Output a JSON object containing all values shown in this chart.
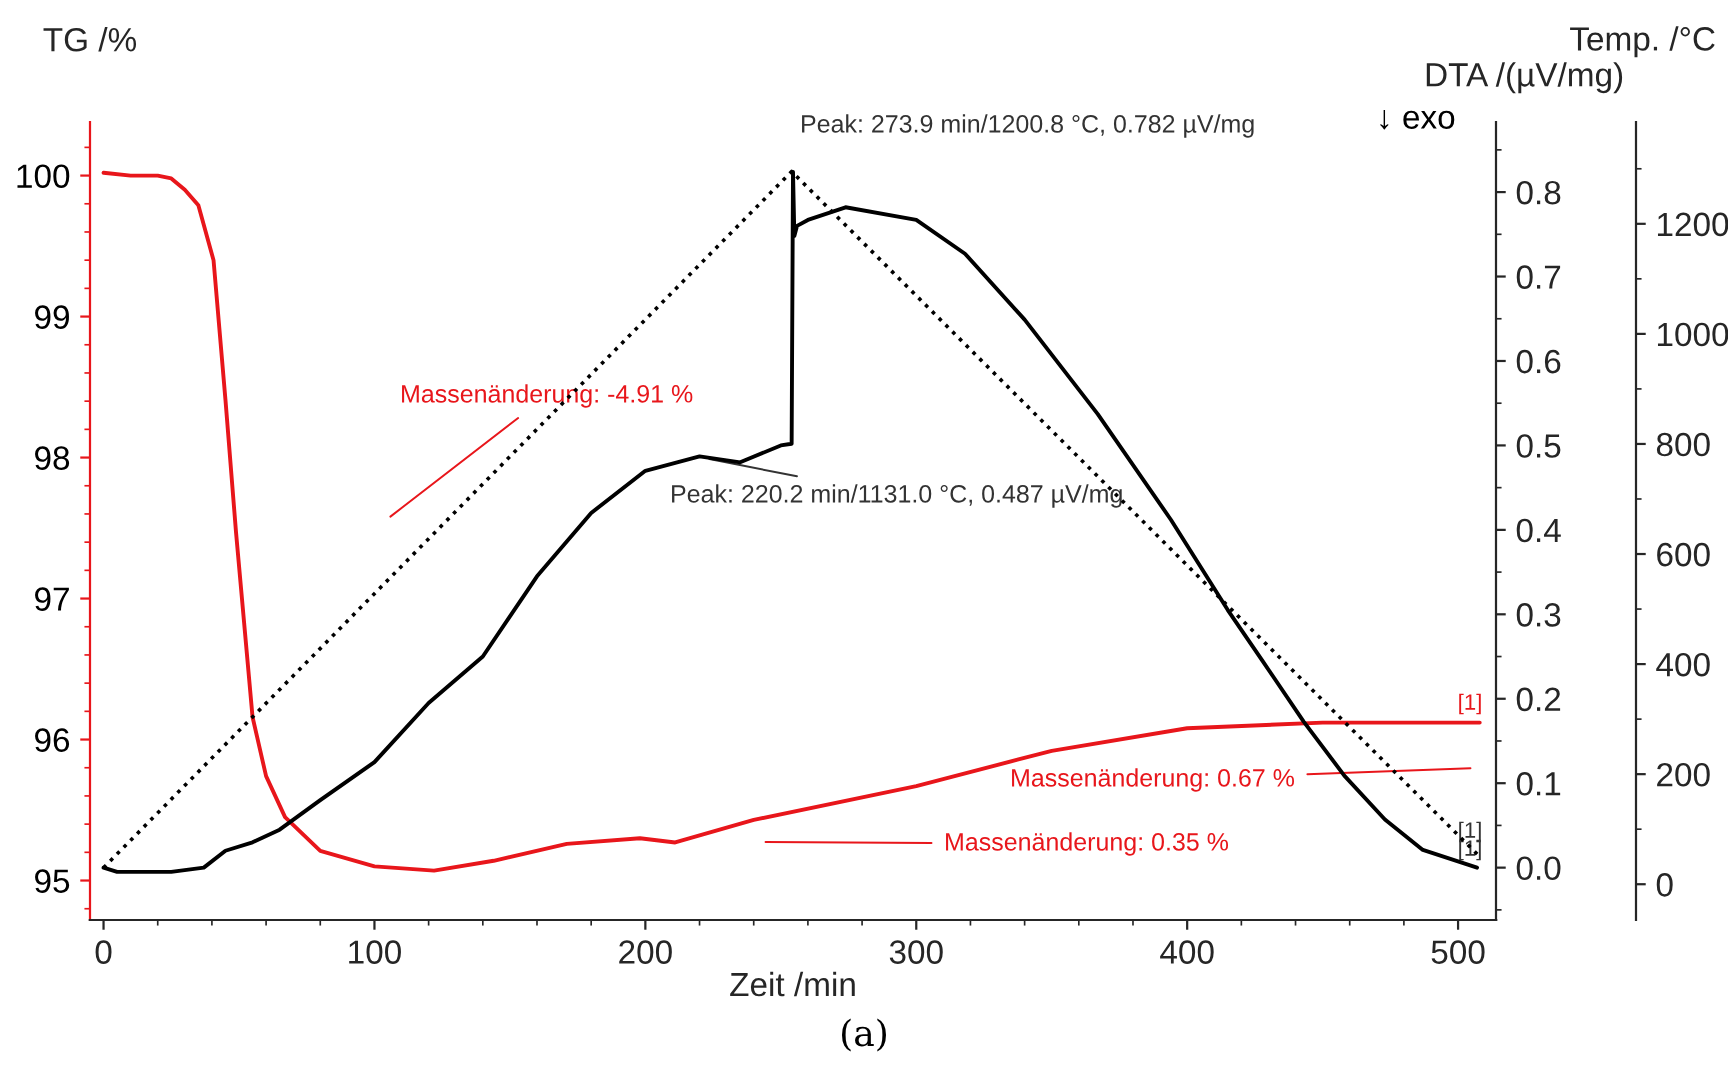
{
  "chart_data": {
    "type": "line",
    "xlabel": "Zeit /min",
    "ylabel": "TG /%",
    "y2label": "DTA /(µV/mg)",
    "y3label": "Temp. /°C",
    "xlim": [
      -5,
      514
    ],
    "xticks": [
      0,
      100,
      200,
      300,
      400,
      500
    ],
    "ylim": [
      94.72,
      100.38
    ],
    "yticks": [
      95,
      96,
      97,
      98,
      99,
      100
    ],
    "y2lim": [
      -0.062,
      0.883
    ],
    "y2ticks": [
      {
        "value": 0,
        "label": "0.0"
      },
      0.1,
      0.2,
      0.3,
      0.4,
      0.5,
      0.6,
      0.7,
      0.8
    ],
    "y3lim": [
      -65,
      1385
    ],
    "y3ticks": [
      0,
      200,
      400,
      600,
      800,
      1000,
      1200
    ],
    "grid": false,
    "legend": false,
    "series": [
      {
        "color": "#e8161b",
        "x": [
          0,
          10,
          20,
          25,
          30,
          35,
          40.6,
          45,
          48.9,
          55,
          60,
          67,
          80,
          100,
          122,
          144,
          171,
          198,
          211,
          240,
          300,
          350,
          400,
          450,
          508
        ],
        "values": [
          100.02,
          100.0,
          100.0,
          99.98,
          99.9,
          99.79,
          99.4,
          98.41,
          97.47,
          96.16,
          95.74,
          95.45,
          95.21,
          95.1,
          95.07,
          95.14,
          95.26,
          95.3,
          95.27,
          95.43,
          95.67,
          95.92,
          96.08,
          96.12,
          96.12
        ]
      },
      {
        "color": "#000000",
        "axis": "y2",
        "x": [
          0,
          5,
          25,
          37,
          45,
          55,
          65,
          80,
          100,
          120,
          140,
          160,
          180,
          200,
          220,
          235,
          250,
          254,
          254.5,
          255,
          256,
          260,
          273.9,
          300,
          318,
          340,
          367,
          394,
          415,
          428,
          443,
          458,
          473,
          487,
          507
        ],
        "values": [
          0.0,
          -0.005,
          -0.005,
          0.0,
          0.02,
          0.03,
          0.045,
          0.08,
          0.125,
          0.195,
          0.25,
          0.345,
          0.42,
          0.47,
          0.487,
          0.48,
          0.5,
          0.502,
          0.824,
          0.748,
          0.76,
          0.767,
          0.782,
          0.767,
          0.727,
          0.649,
          0.537,
          0.412,
          0.305,
          0.244,
          0.173,
          0.109,
          0.057,
          0.021,
          0.0
        ]
      },
      {
        "color": "#000000",
        "axis": "y3",
        "line_style": "dotted",
        "x": [
          0,
          254,
          508
        ],
        "values": [
          30,
          1295,
          50
        ]
      }
    ],
    "annotations": [
      "Peak: 273.9 min/1200.8 °C, 0.782 µV/mg",
      "Peak: 220.2 min/1131.0 °C, 0.487 µV/mg",
      "Massenänderung: -4.91 %",
      "Massenänderung: 0.67 %",
      "Massenänderung: 0.35 %",
      "[1]",
      "[1]",
      "[1]",
      "↓ exo",
      "(a)"
    ]
  }
}
